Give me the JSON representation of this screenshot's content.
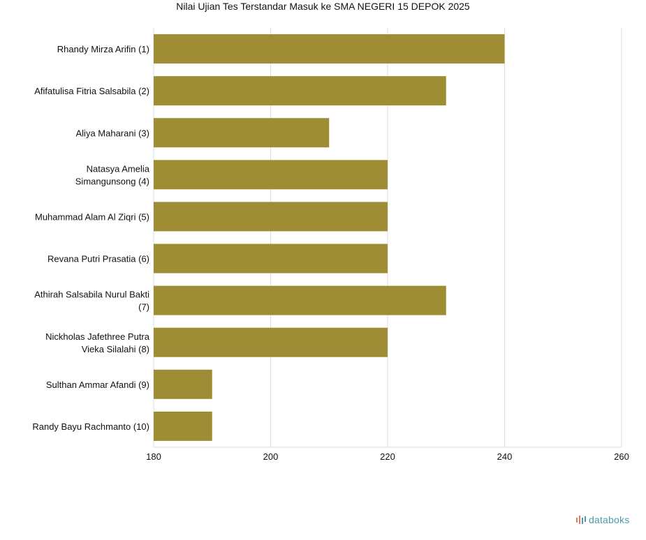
{
  "chart_data": {
    "type": "bar",
    "orientation": "horizontal",
    "title": "Nilai Ujian Tes Terstandar Masuk ke SMA NEGERI 15 DEPOK 2025",
    "xlabel": "",
    "ylabel": "",
    "categories": [
      [
        "Rhandy Mirza Arifin (1)"
      ],
      [
        "Afifatulisa Fitria Salsabila (2)"
      ],
      [
        "Aliya Maharani (3)"
      ],
      [
        "Natasya Amelia",
        "Simangunsong (4)"
      ],
      [
        "Muhammad Alam Al Ziqri (5)"
      ],
      [
        "Revana Putri Prasatia (6)"
      ],
      [
        "Athirah Salsabila Nurul Bakti",
        "(7)"
      ],
      [
        "Nickholas Jafethree Putra",
        "Vieka Silalahi (8)"
      ],
      [
        "Sulthan Ammar Afandi (9)"
      ],
      [
        "Randy Bayu Rachmanto (10)"
      ]
    ],
    "values": [
      240,
      230,
      210,
      220,
      220,
      220,
      230,
      220,
      190,
      190
    ],
    "xlim": [
      180,
      260
    ],
    "xticks": [
      180,
      200,
      220,
      240,
      260
    ],
    "grid": true,
    "legend": "none",
    "bar_color": "#9f8d36",
    "grid_color": "#dddddd",
    "label_color": "#111111"
  },
  "branding": {
    "logo_text": "databoks",
    "logo_color": "#4f9aa6",
    "accent_colors": [
      "#e07a5f",
      "#4f9aa6"
    ]
  }
}
